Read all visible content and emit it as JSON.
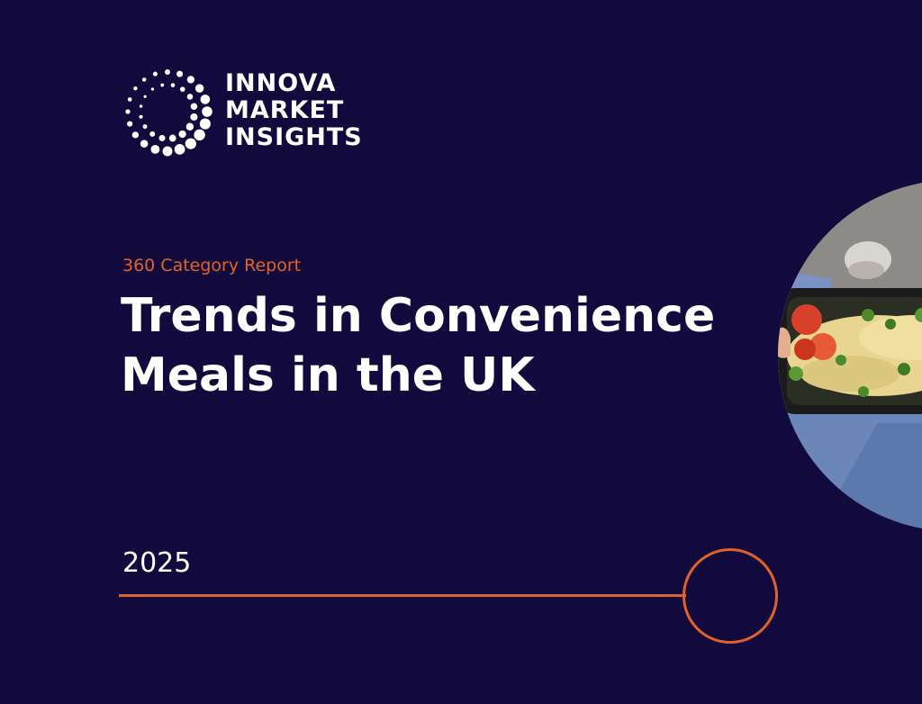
{
  "brand": {
    "line1": "INNOVA",
    "line2": "MARKET",
    "line3": "INSIGHTS"
  },
  "report": {
    "eyebrow": "360 Category Report",
    "title_line1": "Trends in Convenience",
    "title_line2": "Meals in the UK",
    "year": "2025"
  },
  "colors": {
    "background": "#120a3d",
    "accent": "#e0622a",
    "text": "#ffffff"
  },
  "photo": {
    "subject": "meal-container-photo"
  }
}
